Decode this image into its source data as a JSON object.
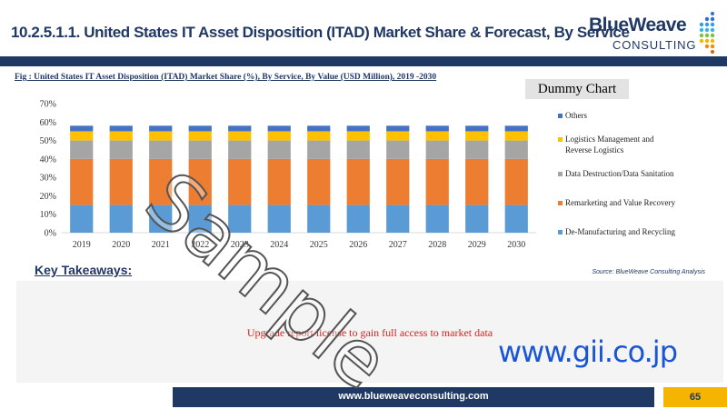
{
  "header": {
    "title": "10.2.5.1.1. United States IT Asset Disposition (ITAD) Market Share & Forecast, By Service",
    "logo_main": "BlueWeave",
    "logo_sub": "CONSULTING"
  },
  "figure": {
    "caption": "Fig : United States IT Asset Disposition (ITAD) Market Share (%), By Service, By Value (USD Million), 2019 -2030",
    "dummy_label": "Dummy Chart"
  },
  "colors": {
    "navy": "#1f3864",
    "others": "#4472c4",
    "logistics": "#ffc000",
    "destruction": "#a5a5a5",
    "remarketing": "#ed7d31",
    "demanufacturing": "#5b9bd5"
  },
  "chart_data": {
    "type": "bar",
    "stacked": true,
    "categories": [
      "2019",
      "2020",
      "2021",
      "2022",
      "2023",
      "2024",
      "2025",
      "2026",
      "2027",
      "2028",
      "2029",
      "2030"
    ],
    "yticks": [
      "0%",
      "10%",
      "20%",
      "30%",
      "40%",
      "50%",
      "60%",
      "70%"
    ],
    "ylim": [
      0,
      70
    ],
    "grid": false,
    "legend_position": "right",
    "series": [
      {
        "name": "De-Manufacturing and Recycling",
        "color": "#5b9bd5",
        "values": [
          15,
          15,
          15,
          15,
          15,
          15,
          15,
          15,
          15,
          15,
          15,
          15
        ]
      },
      {
        "name": "Remarketing and Value Recovery",
        "color": "#ed7d31",
        "values": [
          25,
          25,
          25,
          25,
          25,
          25,
          25,
          25,
          25,
          25,
          25,
          25
        ]
      },
      {
        "name": "Data Destruction/Data Sanitation",
        "color": "#a5a5a5",
        "values": [
          10,
          10,
          10,
          10,
          10,
          10,
          10,
          10,
          10,
          10,
          10,
          10
        ]
      },
      {
        "name": "Logistics Management and Reverse Logistics",
        "color": "#ffc000",
        "values": [
          5,
          5,
          5,
          5,
          5,
          5,
          5,
          5,
          5,
          5,
          5,
          5
        ]
      },
      {
        "name": "Others",
        "color": "#4472c4",
        "values": [
          3,
          3,
          3,
          3,
          3,
          3,
          3,
          3,
          3,
          3,
          3,
          3
        ]
      }
    ],
    "legend_lines": [
      [
        "Others"
      ],
      [
        "Logistics Management and",
        "Reverse Logistics"
      ],
      [
        "Data Destruction/Data Sanitation"
      ],
      [
        "Remarketing and Value Recovery"
      ],
      [
        "De-Manufacturing and Recycling"
      ]
    ]
  },
  "takeaways": {
    "heading": "Key Takeaways:",
    "source": "Source: BlueWeave Consulting Analysis",
    "upgrade_text": "Upgrade report license to gain full access to market data"
  },
  "watermark": {
    "sample": "Sample",
    "gii": "www.gii.co.jp"
  },
  "footer": {
    "url": "www.blueweaveconsulting.com",
    "page": "65"
  }
}
